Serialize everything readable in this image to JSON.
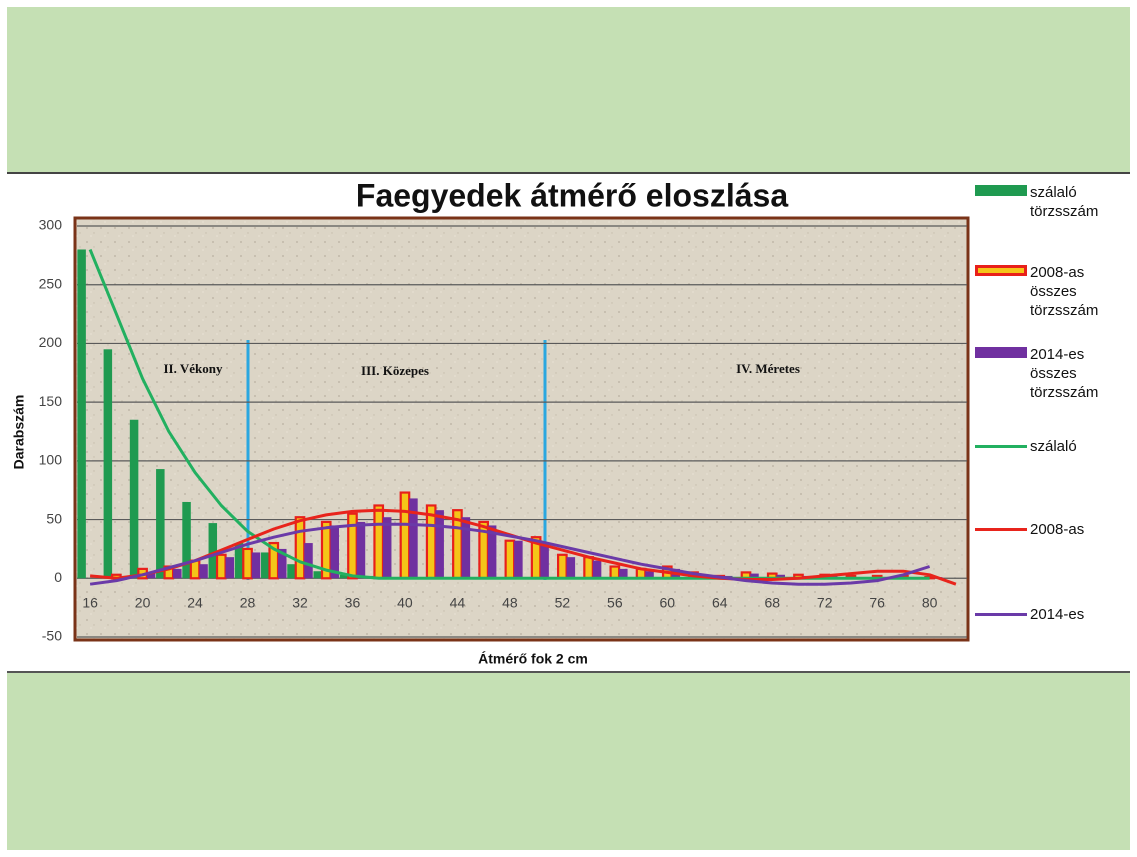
{
  "chart_data": {
    "type": "bar",
    "title": "Faegyedek átmérő eloszlása",
    "y_label": "Darabszám",
    "x_label": "Átmérő fok 2 cm",
    "annotations": [
      "II. Vékony",
      "III. Közepes",
      "IV. Méretes"
    ],
    "categories": [
      "16",
      null,
      "20",
      null,
      "24",
      null,
      "28",
      null,
      "32",
      null,
      "36",
      null,
      "40",
      null,
      "44",
      null,
      "48",
      null,
      "52",
      null,
      "56",
      null,
      "60",
      null,
      "64",
      null,
      "68",
      null,
      "72",
      null,
      "76",
      null,
      "80",
      null
    ],
    "ylim": [
      -50,
      300
    ],
    "yticks": [
      -50,
      0,
      50,
      100,
      150,
      200,
      250,
      300
    ],
    "grid": true,
    "series": [
      {
        "name": "szálaló törzsszám",
        "type": "bar",
        "color": "#1f9a50",
        "values": [
          280,
          195,
          135,
          93,
          65,
          47,
          30,
          22,
          12,
          6,
          3,
          2,
          1,
          1,
          1,
          0,
          0,
          0,
          0,
          0,
          0,
          0,
          0,
          0,
          0,
          0,
          0,
          0,
          0,
          0,
          0,
          0,
          0,
          0
        ]
      },
      {
        "name": "2008-as összes törzsszám",
        "type": "bar",
        "color": "#f5c518",
        "edgecolor": "#e8201a",
        "values": [
          0,
          3,
          8,
          10,
          15,
          20,
          25,
          30,
          52,
          48,
          55,
          62,
          73,
          62,
          58,
          48,
          32,
          35,
          20,
          18,
          10,
          8,
          10,
          5,
          2,
          5,
          4,
          3,
          3,
          2,
          2,
          2,
          1,
          0
        ]
      },
      {
        "name": "2014-es összes törzsszám",
        "type": "bar",
        "color": "#7030a0",
        "values": [
          0,
          2,
          5,
          8,
          12,
          18,
          22,
          25,
          30,
          45,
          48,
          52,
          68,
          58,
          52,
          45,
          32,
          30,
          18,
          15,
          8,
          6,
          8,
          3,
          2,
          4,
          3,
          2,
          2,
          1,
          1,
          1,
          1,
          0
        ]
      },
      {
        "name": "szálaló",
        "type": "line",
        "color": "#22b060",
        "values": [
          280,
          225,
          170,
          125,
          90,
          62,
          40,
          25,
          14,
          7,
          2,
          0,
          0,
          0,
          0,
          0,
          0,
          0,
          0,
          0,
          0,
          0,
          0,
          0,
          0,
          0,
          0,
          0,
          0,
          0,
          0,
          0,
          0,
          null
        ]
      },
      {
        "name": "2008-as",
        "type": "line",
        "color": "#e8241c",
        "values": [
          2,
          0,
          3,
          8,
          15,
          24,
          33,
          42,
          49,
          54,
          57,
          58,
          57,
          54,
          50,
          44,
          37,
          30,
          24,
          18,
          13,
          8,
          5,
          2,
          0,
          -1,
          -1,
          0,
          2,
          4,
          6,
          6,
          3,
          -5
        ]
      },
      {
        "name": "2014-es",
        "type": "line",
        "color": "#6a3aa8",
        "values": [
          -5,
          -2,
          3,
          9,
          15,
          22,
          29,
          35,
          40,
          43,
          45,
          46,
          46,
          45,
          43,
          40,
          36,
          32,
          27,
          22,
          17,
          12,
          8,
          4,
          1,
          -2,
          -4,
          -5,
          -5,
          -4,
          -2,
          3,
          10,
          null
        ]
      }
    ]
  }
}
